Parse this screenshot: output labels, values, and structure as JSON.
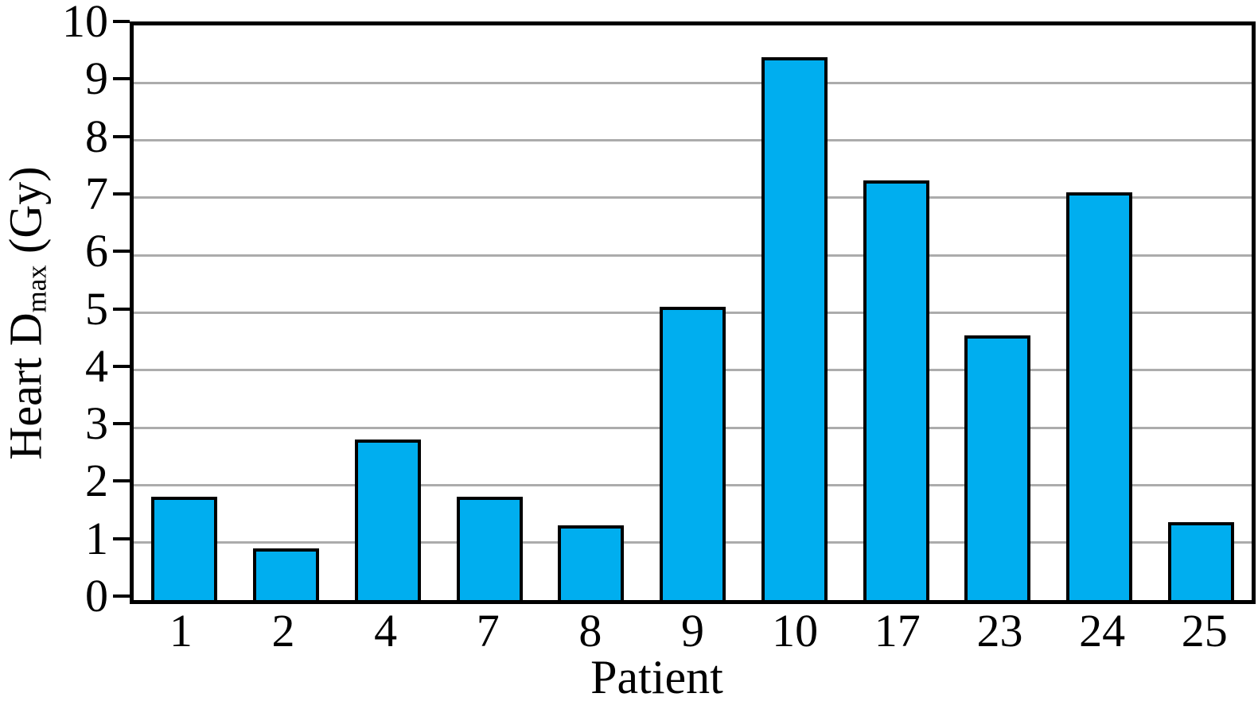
{
  "chart_data": {
    "type": "bar",
    "categories": [
      "1",
      "2",
      "4",
      "7",
      "8",
      "9",
      "10",
      "17",
      "23",
      "24",
      "25"
    ],
    "values": [
      1.8,
      0.9,
      2.8,
      1.8,
      1.3,
      5.1,
      9.45,
      7.3,
      4.6,
      7.1,
      1.35
    ],
    "title": "",
    "xlabel": "Patient",
    "ylabel": "Heart Dmax (Gy)",
    "ylabel_parts": {
      "pre": "Heart D",
      "sub": "max",
      "post": " (Gy)"
    },
    "ylim": [
      0,
      10
    ],
    "yticks": [
      0,
      1,
      2,
      3,
      4,
      5,
      6,
      7,
      8,
      9,
      10
    ],
    "grid": "horizontal",
    "legend": "none",
    "colors": {
      "bar_fill": "#00AEEF",
      "bar_border": "#000000",
      "gridline": "#ACACAC",
      "axis": "#000000",
      "text": "#000000"
    }
  }
}
